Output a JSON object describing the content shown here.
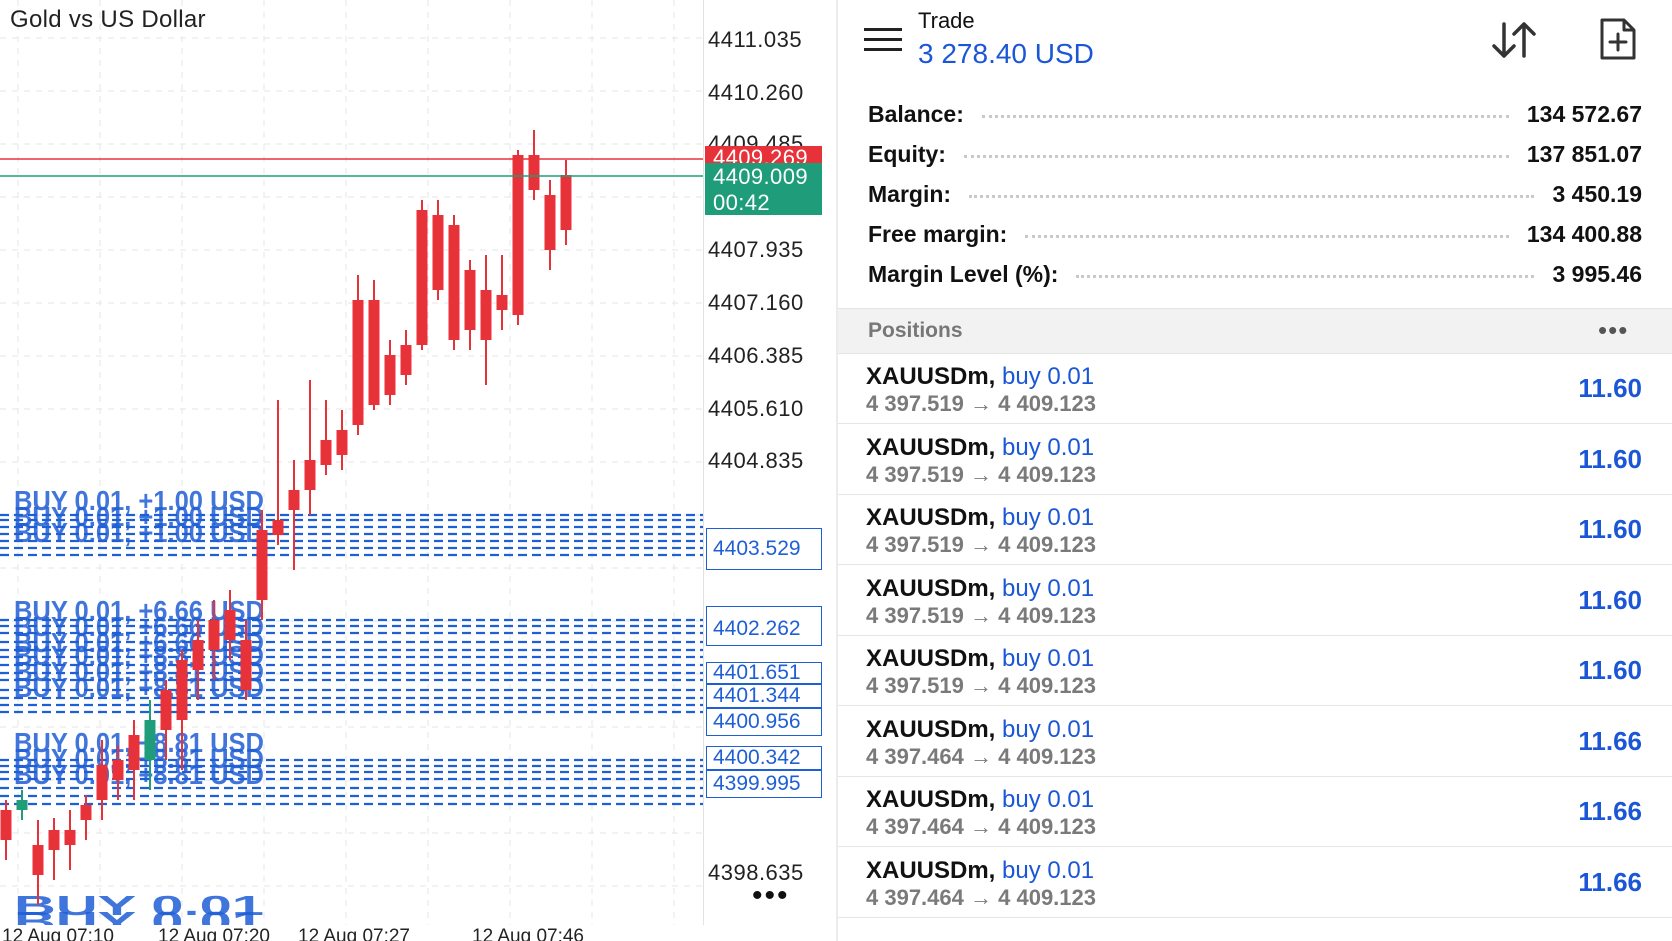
{
  "chart": {
    "title": "Gold vs US Dollar",
    "price_axis": [
      "4411.035",
      "4410.260",
      "4409.485",
      "4407.935",
      "4407.160",
      "4406.385",
      "4405.610",
      "4404.835",
      "4398.635"
    ],
    "ask_price": "4409.269",
    "bid_price": "4409.009",
    "countdown": "00:42",
    "position_levels": [
      "4403.529",
      "4402.262",
      "4401.651",
      "4401.344",
      "4400.956",
      "4400.342",
      "4399.995"
    ],
    "position_labels": [
      "BUY 0.01, +1.00 USD",
      "BUY 0.01, +6.66 USD",
      "BUY 0.01, +8.81 USD",
      "BUY 0.01"
    ],
    "time_axis": [
      "12 Aug 07:10",
      "12 Aug 07:20",
      "12 Aug 07:27",
      "12 Aug 07:46"
    ],
    "more_label": "•••",
    "colors": {
      "bull": "#1f9d7a",
      "bear": "#e8323a",
      "position": "#1f5fd6",
      "grid": "#e6e6e6"
    }
  },
  "trade": {
    "title": "Trade",
    "total_profit": "3 278.40 USD",
    "icons": {
      "menu": "menu-icon",
      "sort": "sort-icon",
      "add": "add-order-icon"
    },
    "account": [
      {
        "label": "Balance:",
        "value": "134 572.67"
      },
      {
        "label": "Equity:",
        "value": "137 851.07"
      },
      {
        "label": "Margin:",
        "value": "3 450.19"
      },
      {
        "label": "Free margin:",
        "value": "134 400.88"
      },
      {
        "label": "Margin Level (%):",
        "value": "3 995.46"
      }
    ],
    "positions_label": "Positions",
    "positions_more": "•••",
    "positions": [
      {
        "symbol": "XAUUSDm,",
        "side": "buy 0.01",
        "open": "4 397.519",
        "arrow": "→",
        "current": "4 409.123",
        "profit": "11.60"
      },
      {
        "symbol": "XAUUSDm,",
        "side": "buy 0.01",
        "open": "4 397.519",
        "arrow": "→",
        "current": "4 409.123",
        "profit": "11.60"
      },
      {
        "symbol": "XAUUSDm,",
        "side": "buy 0.01",
        "open": "4 397.519",
        "arrow": "→",
        "current": "4 409.123",
        "profit": "11.60"
      },
      {
        "symbol": "XAUUSDm,",
        "side": "buy 0.01",
        "open": "4 397.519",
        "arrow": "→",
        "current": "4 409.123",
        "profit": "11.60"
      },
      {
        "symbol": "XAUUSDm,",
        "side": "buy 0.01",
        "open": "4 397.519",
        "arrow": "→",
        "current": "4 409.123",
        "profit": "11.60"
      },
      {
        "symbol": "XAUUSDm,",
        "side": "buy 0.01",
        "open": "4 397.464",
        "arrow": "→",
        "current": "4 409.123",
        "profit": "11.66"
      },
      {
        "symbol": "XAUUSDm,",
        "side": "buy 0.01",
        "open": "4 397.464",
        "arrow": "→",
        "current": "4 409.123",
        "profit": "11.66"
      },
      {
        "symbol": "XAUUSDm,",
        "side": "buy 0.01",
        "open": "4 397.464",
        "arrow": "→",
        "current": "4 409.123",
        "profit": "11.66"
      }
    ]
  }
}
